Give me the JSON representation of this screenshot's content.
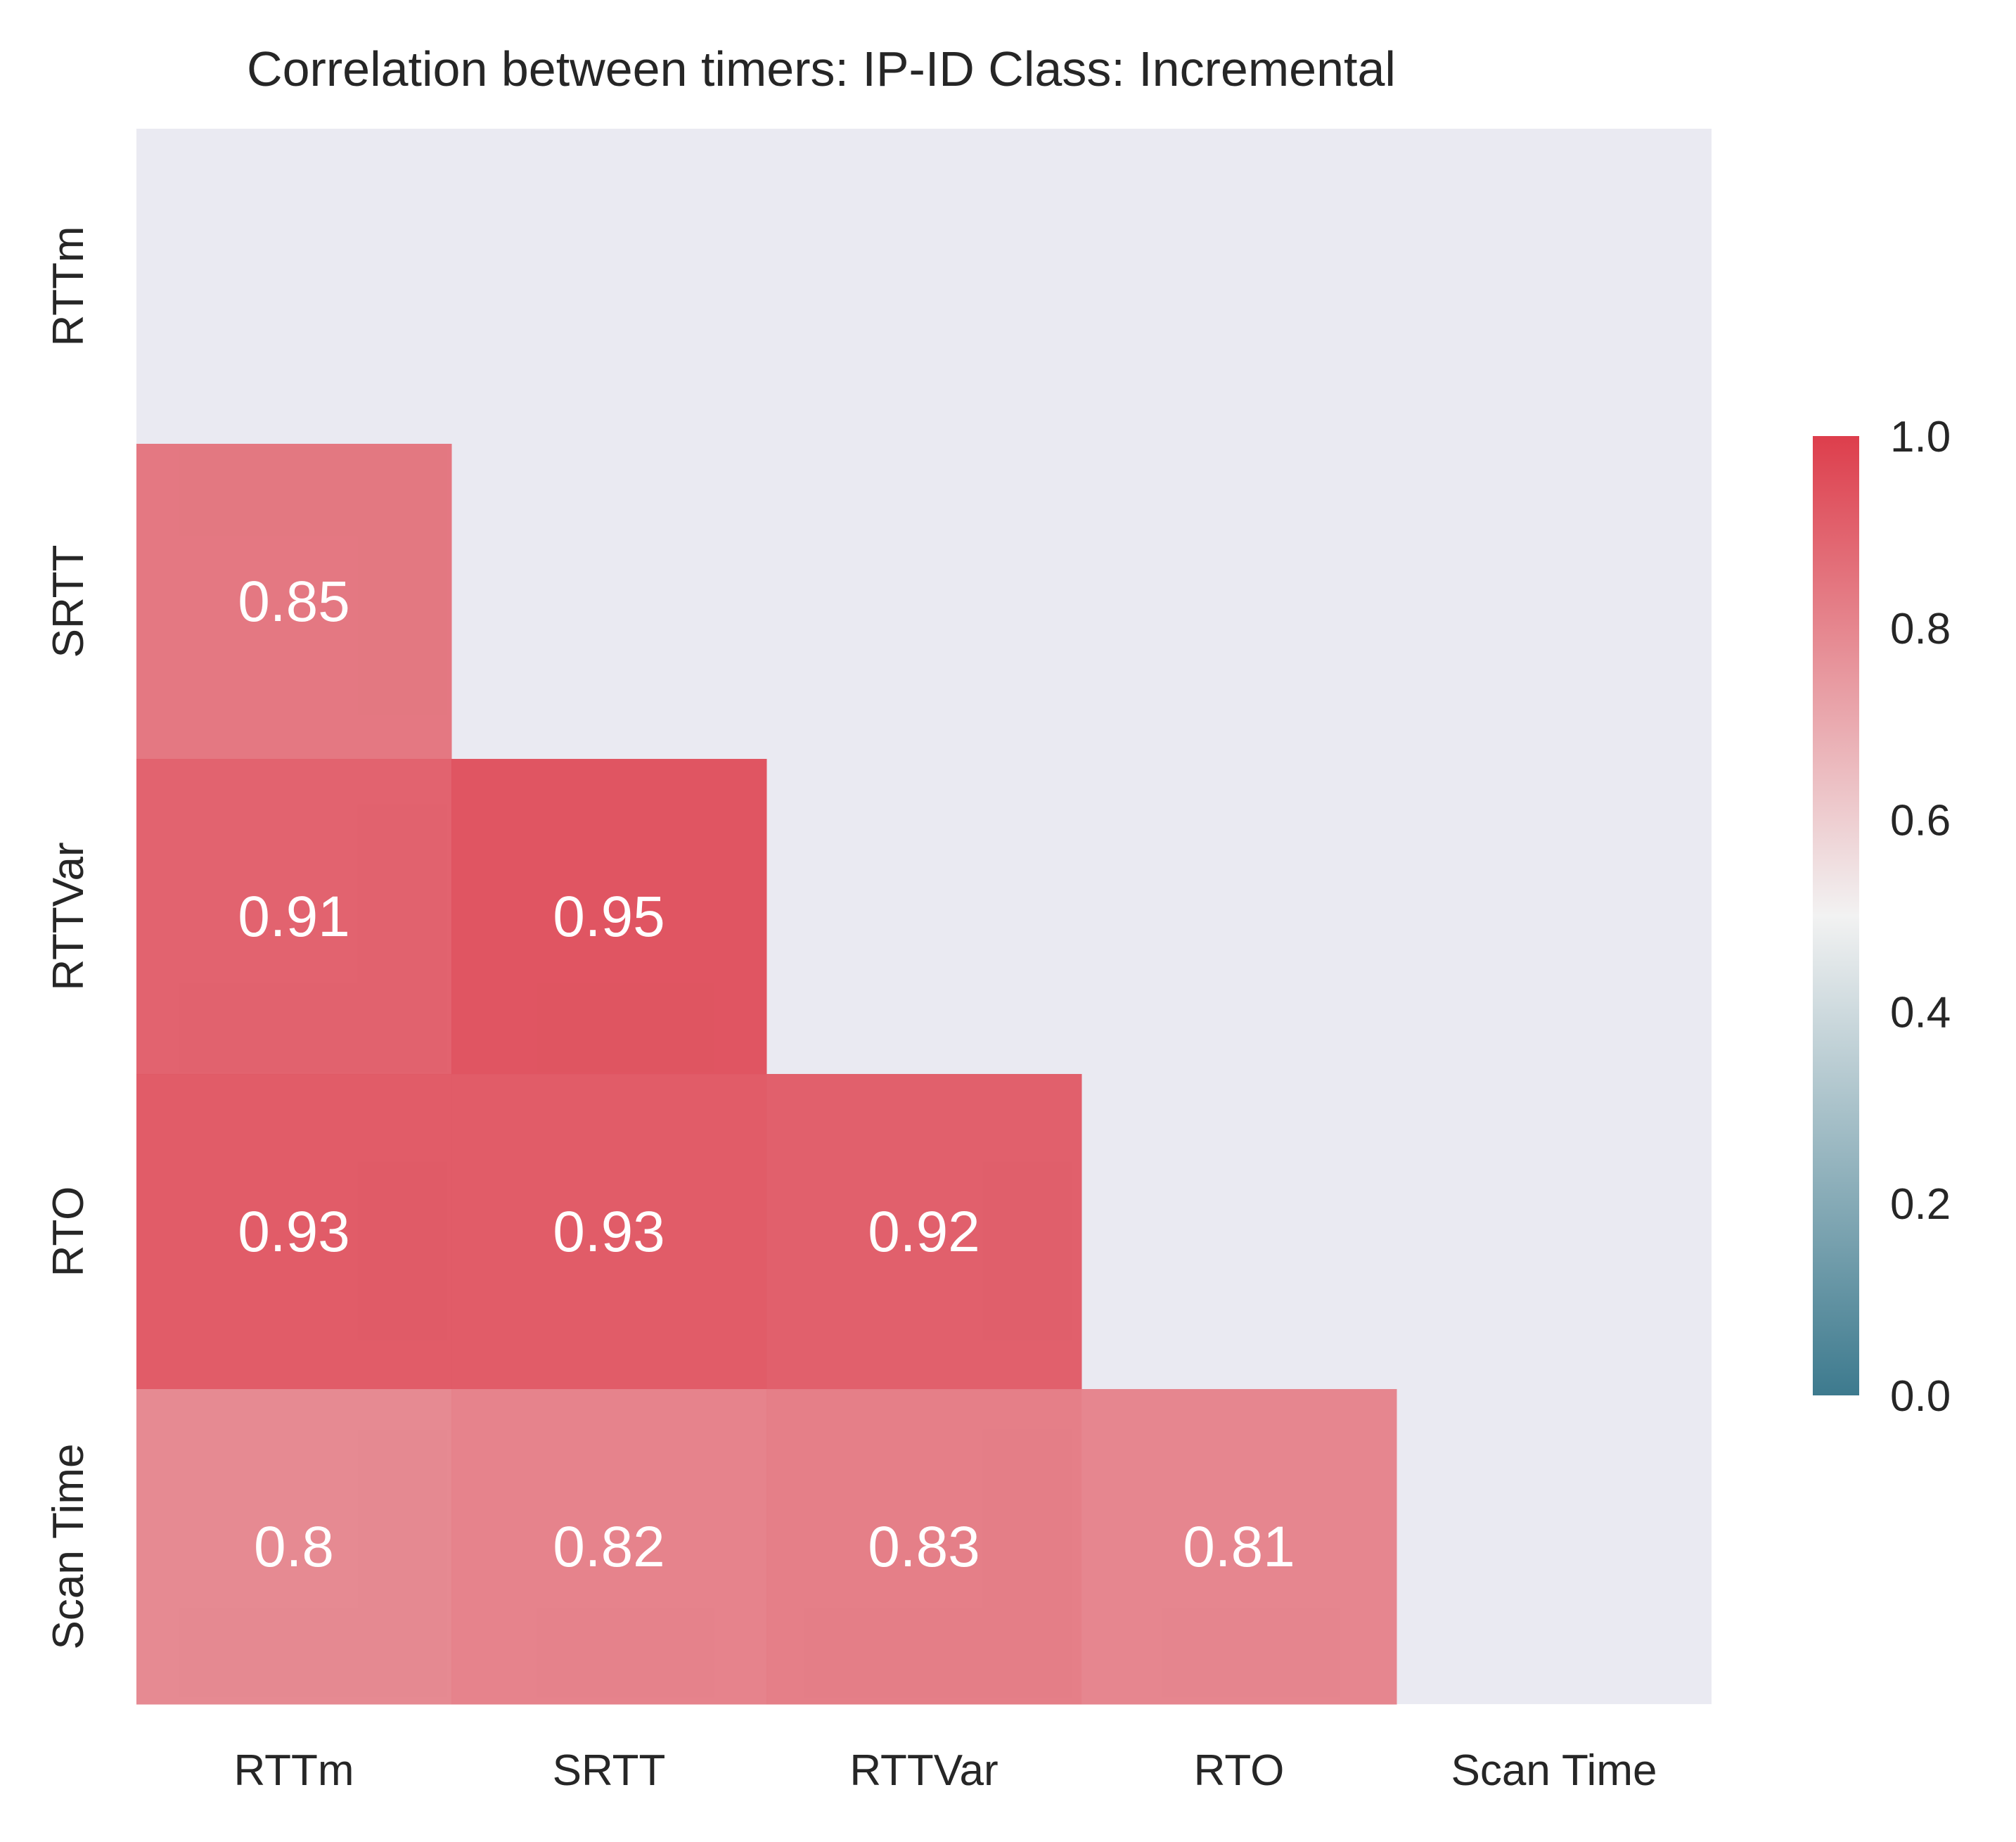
{
  "chart_data": {
    "type": "heatmap",
    "title": "Correlation between timers: IP-ID Class: Incremental",
    "xlabel": "",
    "ylabel": "",
    "x_categories": [
      "RTTm",
      "SRTT",
      "RTTVar",
      "RTO",
      "Scan Time"
    ],
    "y_categories": [
      "RTTm",
      "SRTT",
      "RTTVar",
      "RTO",
      "Scan Time"
    ],
    "mask": "upper-triangle-including-diagonal",
    "cells": [
      {
        "row": "SRTT",
        "col": "RTTm",
        "value": 0.85,
        "label": "0.85"
      },
      {
        "row": "RTTVar",
        "col": "RTTm",
        "value": 0.91,
        "label": "0.91"
      },
      {
        "row": "RTTVar",
        "col": "SRTT",
        "value": 0.95,
        "label": "0.95"
      },
      {
        "row": "RTO",
        "col": "RTTm",
        "value": 0.93,
        "label": "0.93"
      },
      {
        "row": "RTO",
        "col": "SRTT",
        "value": 0.93,
        "label": "0.93"
      },
      {
        "row": "RTO",
        "col": "RTTVar",
        "value": 0.92,
        "label": "0.92"
      },
      {
        "row": "Scan Time",
        "col": "RTTm",
        "value": 0.8,
        "label": "0.8"
      },
      {
        "row": "Scan Time",
        "col": "SRTT",
        "value": 0.82,
        "label": "0.82"
      },
      {
        "row": "Scan Time",
        "col": "RTTVar",
        "value": 0.83,
        "label": "0.83"
      },
      {
        "row": "Scan Time",
        "col": "RTO",
        "value": 0.81,
        "label": "0.81"
      }
    ],
    "colorbar": {
      "vmin": 0.0,
      "vmax": 1.0,
      "ticks": [
        "0.0",
        "0.2",
        "0.4",
        "0.6",
        "0.8",
        "1.0"
      ],
      "tick_values": [
        0.0,
        0.2,
        0.4,
        0.6,
        0.8,
        1.0
      ],
      "colormap": "diverging blue-white-red",
      "low_color": "#3d7a8e",
      "mid_color": "#f2f2f2",
      "high_color": "#dd3e4c"
    },
    "background_color": "#eaeaf2",
    "grid": false,
    "legend": "colorbar right"
  }
}
